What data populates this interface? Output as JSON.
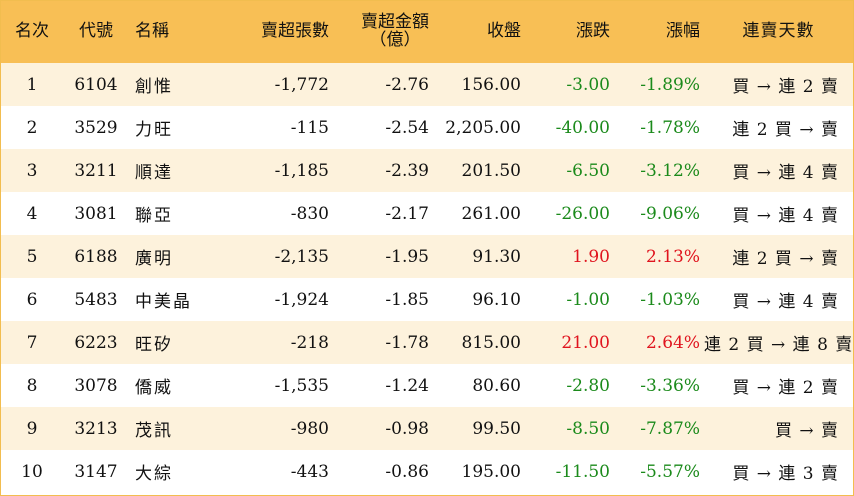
{
  "table": {
    "headers": {
      "rank": "名次",
      "code": "代號",
      "name": "名稱",
      "net_sell_lots": "賣超張數",
      "net_sell_amount_line1": "賣超金額",
      "net_sell_amount_line2": "（億）",
      "close": "收盤",
      "change": "漲跌",
      "change_pct": "漲幅",
      "consecutive_days": "連賣天數"
    },
    "colors": {
      "header_bg": "#f8bf55",
      "odd_row_bg": "#fdf2dc",
      "border": "#f2bd4f",
      "up": "#e0141e",
      "down": "#1b8a1b"
    },
    "rows": [
      {
        "rank": "1",
        "code": "6104",
        "name": "創惟",
        "lots": "-1,772",
        "amount": "-2.76",
        "close": "156.00",
        "change": "-3.00",
        "pct": "-1.89%",
        "days": "買 → 連 2 賣",
        "dir": "down"
      },
      {
        "rank": "2",
        "code": "3529",
        "name": "力旺",
        "lots": "-115",
        "amount": "-2.54",
        "close": "2,205.00",
        "change": "-40.00",
        "pct": "-1.78%",
        "days": "連 2 買 → 賣",
        "dir": "down"
      },
      {
        "rank": "3",
        "code": "3211",
        "name": "順達",
        "lots": "-1,185",
        "amount": "-2.39",
        "close": "201.50",
        "change": "-6.50",
        "pct": "-3.12%",
        "days": "買 → 連 4 賣",
        "dir": "down"
      },
      {
        "rank": "4",
        "code": "3081",
        "name": "聯亞",
        "lots": "-830",
        "amount": "-2.17",
        "close": "261.00",
        "change": "-26.00",
        "pct": "-9.06%",
        "days": "買 → 連 4 賣",
        "dir": "down"
      },
      {
        "rank": "5",
        "code": "6188",
        "name": "廣明",
        "lots": "-2,135",
        "amount": "-1.95",
        "close": "91.30",
        "change": "1.90",
        "pct": "2.13%",
        "days": "連 2 買 → 賣",
        "dir": "up"
      },
      {
        "rank": "6",
        "code": "5483",
        "name": "中美晶",
        "lots": "-1,924",
        "amount": "-1.85",
        "close": "96.10",
        "change": "-1.00",
        "pct": "-1.03%",
        "days": "買 → 連 4 賣",
        "dir": "down"
      },
      {
        "rank": "7",
        "code": "6223",
        "name": "旺矽",
        "lots": "-218",
        "amount": "-1.78",
        "close": "815.00",
        "change": "21.00",
        "pct": "2.64%",
        "days": "連 2 買 → 連 8 賣",
        "dir": "up"
      },
      {
        "rank": "8",
        "code": "3078",
        "name": "僑威",
        "lots": "-1,535",
        "amount": "-1.24",
        "close": "80.60",
        "change": "-2.80",
        "pct": "-3.36%",
        "days": "買 → 連 2 賣",
        "dir": "down"
      },
      {
        "rank": "9",
        "code": "3213",
        "name": "茂訊",
        "lots": "-980",
        "amount": "-0.98",
        "close": "99.50",
        "change": "-8.50",
        "pct": "-7.87%",
        "days": "買 → 賣",
        "dir": "down"
      },
      {
        "rank": "10",
        "code": "3147",
        "name": "大綜",
        "lots": "-443",
        "amount": "-0.86",
        "close": "195.00",
        "change": "-11.50",
        "pct": "-5.57%",
        "days": "買 → 連 3 賣",
        "dir": "down"
      }
    ]
  }
}
